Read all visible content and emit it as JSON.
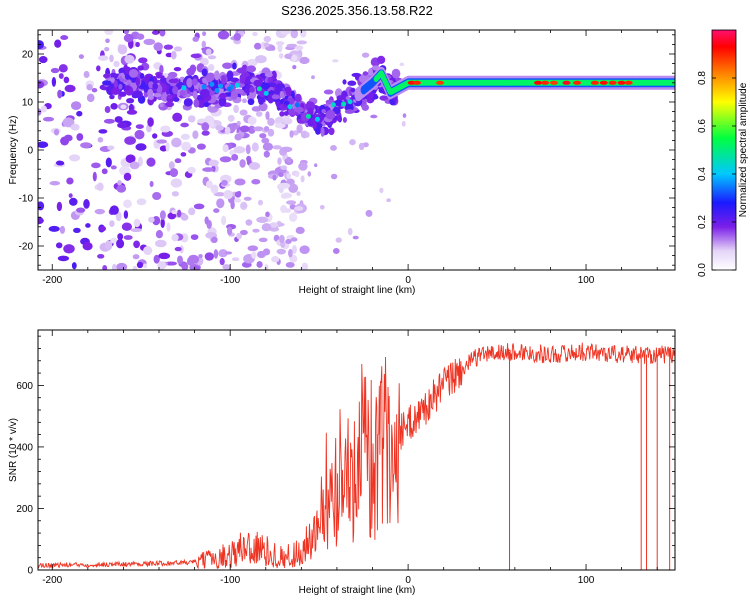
{
  "chart_data": [
    {
      "type": "heatmap",
      "title": "S236.2025.356.13.58.R22",
      "xlabel": "Height of straight line (km)",
      "ylabel": "Frequency (Hz)",
      "xlim": [
        -208,
        150
      ],
      "ylim": [
        -25,
        25
      ],
      "xticks": [
        -200,
        -100,
        0,
        100
      ],
      "yticks": [
        -20,
        -10,
        0,
        10,
        20
      ],
      "colorbar": {
        "label": "Normalized spectral amplitude",
        "range": [
          0.0,
          1.0
        ],
        "ticks": [
          0.0,
          0.2,
          0.4,
          0.6,
          0.8
        ],
        "tick_labels": [
          "0.0",
          "0.2",
          "0.4",
          "0.6",
          "0.8"
        ]
      },
      "ridge": {
        "description_points_x": [
          -208,
          -160,
          -130,
          -100,
          -90,
          -75,
          -60,
          -50,
          -40,
          -30,
          -20,
          -15,
          -10,
          0,
          50,
          100,
          150
        ],
        "description_points_y": [
          15,
          14,
          13,
          13,
          14,
          12,
          8,
          6,
          9,
          11,
          14,
          16,
          12,
          14,
          14,
          14,
          14
        ]
      }
    },
    {
      "type": "line",
      "xlabel": "Height of straight line (km)",
      "ylabel": "SNR (10 * v/v)",
      "xlim": [
        -208,
        150
      ],
      "ylim": [
        0,
        780
      ],
      "xticks": [
        -200,
        -100,
        0,
        100
      ],
      "yticks": [
        0,
        200,
        400,
        600
      ],
      "series": [
        {
          "name": "SNR",
          "color": "#ee3322",
          "x": [
            -208,
            -150,
            -120,
            -100,
            -90,
            -80,
            -70,
            -60,
            -50,
            -40,
            -30,
            -20,
            -10,
            0,
            10,
            20,
            30,
            40,
            60,
            80,
            100,
            120,
            150
          ],
          "y": [
            15,
            20,
            25,
            50,
            80,
            60,
            40,
            60,
            120,
            260,
            350,
            380,
            420,
            470,
            530,
            600,
            650,
            700,
            710,
            700,
            710,
            700,
            700
          ],
          "dropouts_x": [
            57,
            131,
            134,
            140,
            147
          ]
        }
      ]
    }
  ]
}
